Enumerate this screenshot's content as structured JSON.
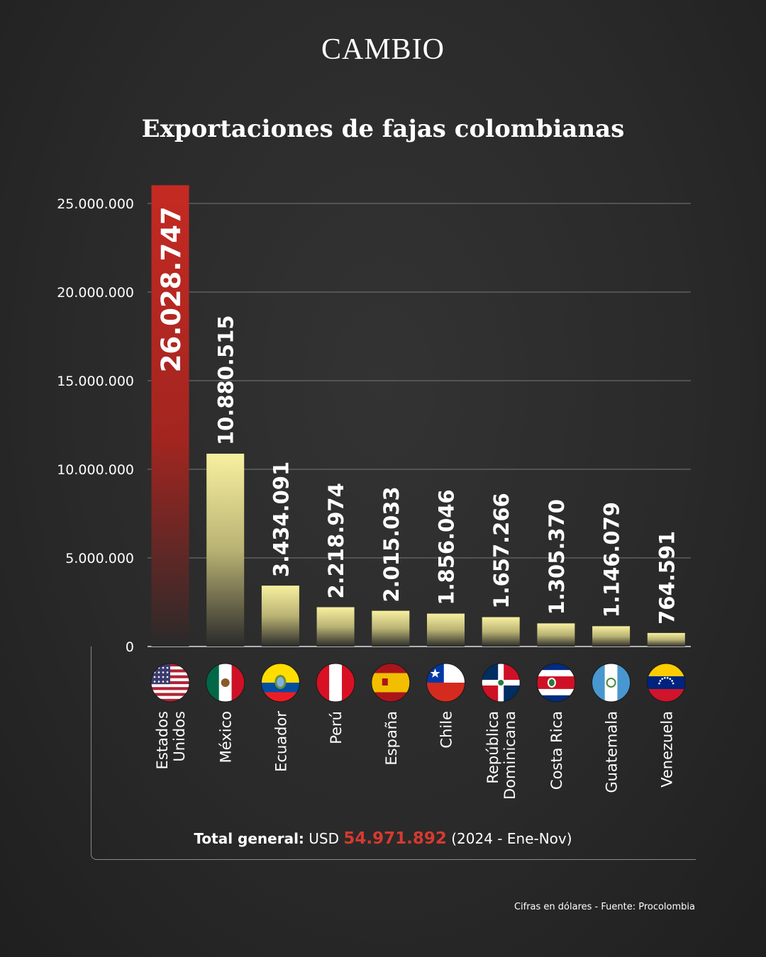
{
  "brand": "CAMBIO",
  "colors": {
    "highlight": "#c42a22",
    "bar_top": "#f7f0a0",
    "bar_bottom": "#2a2a2a",
    "total_amount": "#d63a2f"
  },
  "chart_data": {
    "type": "bar",
    "title": "Exportaciones de fajas colombianas",
    "categories": [
      "Estados Unidos",
      "México",
      "Ecuador",
      "Perú",
      "España",
      "Chile",
      "República Dominicana",
      "Costa Rica",
      "Guatemala",
      "Venezuela"
    ],
    "category_lines": [
      [
        "Estados",
        "Unidos"
      ],
      [
        "México"
      ],
      [
        "Ecuador"
      ],
      [
        "Perú"
      ],
      [
        "España"
      ],
      [
        "Chile"
      ],
      [
        "República",
        "Dominicana"
      ],
      [
        "Costa Rica"
      ],
      [
        "Guatemala"
      ],
      [
        "Venezuela"
      ]
    ],
    "values": [
      26028747,
      10880515,
      3434091,
      2218974,
      2015033,
      1856046,
      1657266,
      1305370,
      1146079,
      764591
    ],
    "value_labels": [
      "26.028.747",
      "10.880.515",
      "3.434.091",
      "2.218.974",
      "2.015.033",
      "1.856.046",
      "1.657.266",
      "1.305.370",
      "1.146.079",
      "764.591"
    ],
    "flags": [
      "united-states-flag-icon",
      "mexico-flag-icon",
      "ecuador-flag-icon",
      "peru-flag-icon",
      "spain-flag-icon",
      "chile-flag-icon",
      "dominican-republic-flag-icon",
      "costa-rica-flag-icon",
      "guatemala-flag-icon",
      "venezuela-flag-icon"
    ],
    "yticks": [
      0,
      5000000,
      10000000,
      15000000,
      20000000,
      25000000
    ],
    "ytick_labels": [
      "0",
      "5.000.000",
      "10.000.000",
      "15.000.000",
      "20.000.000",
      "25.000.000"
    ],
    "ylim": [
      0,
      25000000
    ],
    "highlight_index": 0,
    "grid": true
  },
  "total": {
    "label": "Total general:",
    "currency": "USD",
    "amount": "54.971.892",
    "period": "(2024 - Ene-Nov)"
  },
  "source": "Cifras en dólares - Fuente: Procolombia"
}
